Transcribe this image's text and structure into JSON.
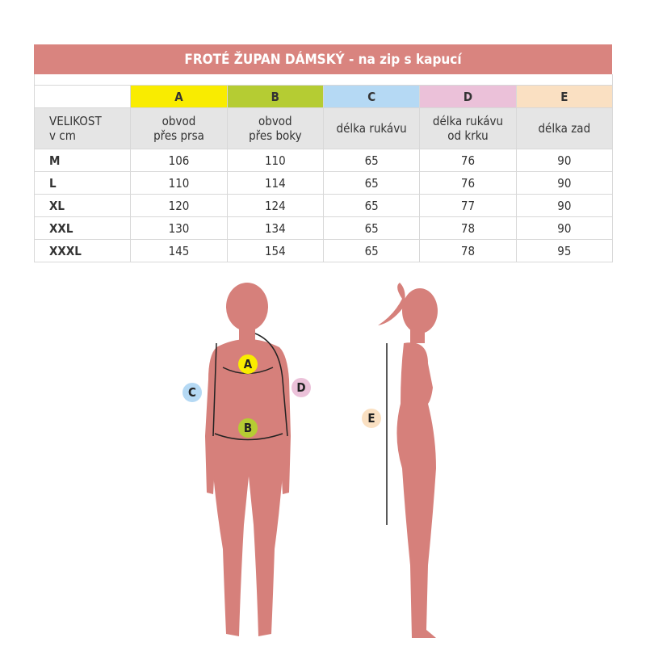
{
  "title": "FROTÉ ŽUPAN DÁMSKÝ - na zip s kapucí",
  "colors": {
    "title_bg": "#d9847f",
    "silhouette": "#d6807b",
    "A": "#f9ec00",
    "B": "#b5cc33",
    "C": "#b5d9f4",
    "D": "#ebc1d9",
    "E": "#fae0c2"
  },
  "columns": [
    {
      "letter": "A",
      "label1": "obvod",
      "label2": "přes prsa"
    },
    {
      "letter": "B",
      "label1": "obvod",
      "label2": "přes boky"
    },
    {
      "letter": "C",
      "label1": "délka rukávu",
      "label2": ""
    },
    {
      "letter": "D",
      "label1": "délka rukávu",
      "label2": "od krku"
    },
    {
      "letter": "E",
      "label1": "délka zad",
      "label2": ""
    }
  ],
  "size_header": {
    "line1": "VELIKOST",
    "line2": "v cm"
  },
  "rows": [
    {
      "size": "M",
      "values": [
        "106",
        "110",
        "65",
        "76",
        "90"
      ]
    },
    {
      "size": "L",
      "values": [
        "110",
        "114",
        "65",
        "76",
        "90"
      ]
    },
    {
      "size": "XL",
      "values": [
        "120",
        "124",
        "65",
        "77",
        "90"
      ]
    },
    {
      "size": "XXL",
      "values": [
        "130",
        "134",
        "65",
        "78",
        "90"
      ]
    },
    {
      "size": "XXXL",
      "values": [
        "145",
        "154",
        "65",
        "78",
        "95"
      ]
    }
  ],
  "markers": {
    "A": "A",
    "B": "B",
    "C": "C",
    "D": "D",
    "E": "E"
  }
}
